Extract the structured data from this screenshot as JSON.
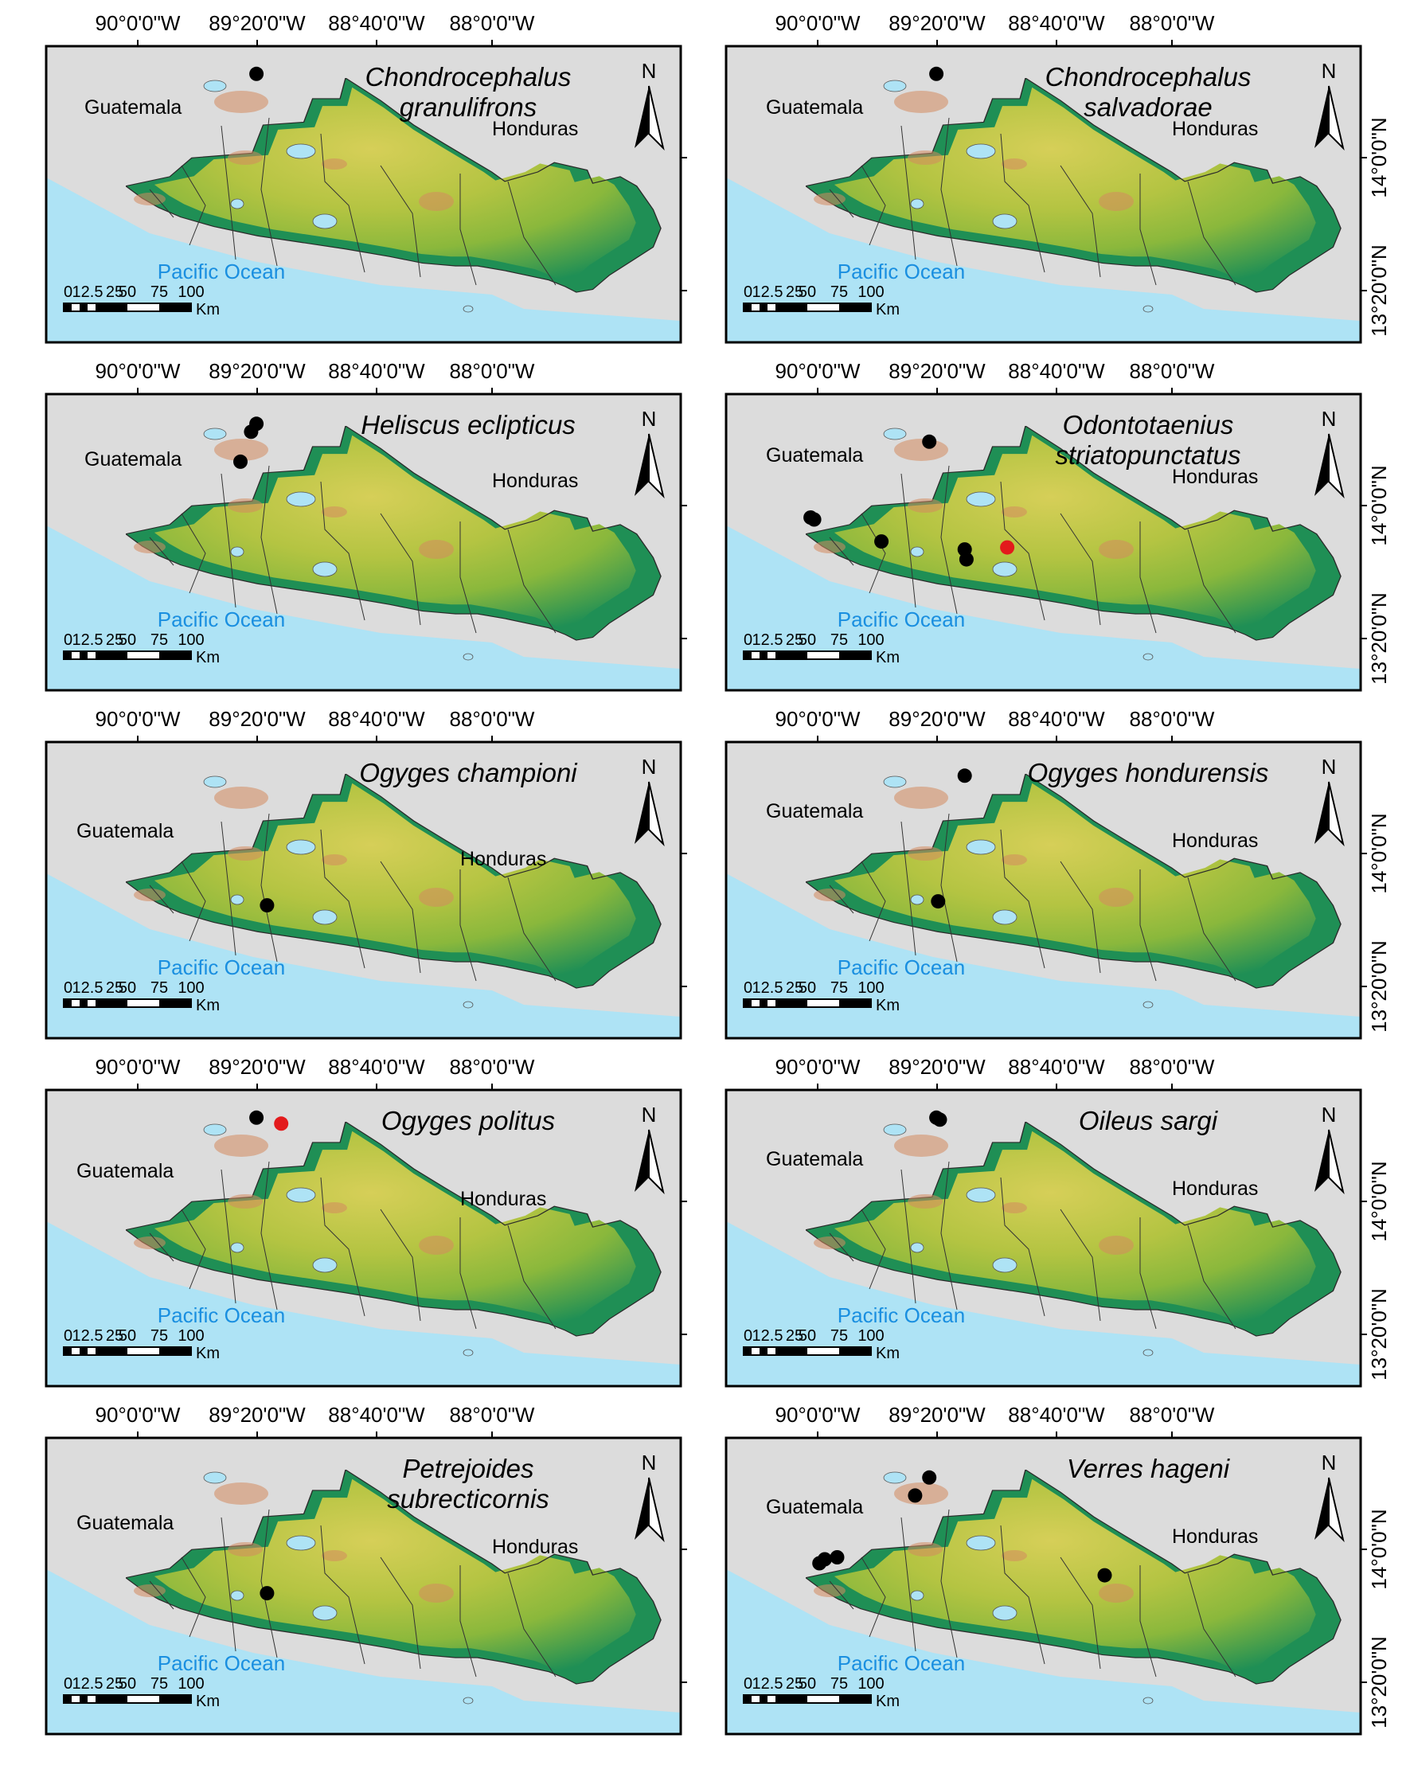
{
  "figure": {
    "lon_labels": [
      "90°0'0\"W",
      "89°20'0\"W",
      "88°40'0\"W",
      "88°0'0\"W"
    ],
    "lat_labels": [
      "14°0'0\"N",
      "13°20'0\"N"
    ],
    "place_labels": {
      "guatemala": "Guatemala",
      "honduras": "Honduras",
      "ocean": "Pacific Ocean"
    },
    "north_arrow_label": "N",
    "scale_bar": {
      "ticks": [
        "0",
        "12.5",
        "25",
        "50",
        "75",
        "100"
      ],
      "unit": "Km"
    },
    "colors": {
      "ocean": "#aee3f5",
      "neighbor_land": "#dcdcdc",
      "lowland": "#1f8f55",
      "midland": "#8ab83c",
      "upland": "#d6cf58",
      "highland": "#d48a5f",
      "record_point": "#000000",
      "new_record_point": "#e31a1c"
    }
  },
  "panels": [
    {
      "id": "p1",
      "title": [
        "Chondrocephalus",
        "granulifrons"
      ],
      "points": [
        {
          "lon": -89.33,
          "lat": 14.42,
          "new": false
        }
      ]
    },
    {
      "id": "p2",
      "title": [
        "Chondrocephalus",
        "salvadorae"
      ],
      "points": [
        {
          "lon": -89.33,
          "lat": 14.42,
          "new": false
        }
      ]
    },
    {
      "id": "p3",
      "title": [
        "Heliscus eclipticus"
      ],
      "points": [
        {
          "lon": -89.33,
          "lat": 14.41,
          "new": false
        },
        {
          "lon": -89.36,
          "lat": 14.37,
          "new": false
        },
        {
          "lon": -89.42,
          "lat": 14.22,
          "new": false
        }
      ]
    },
    {
      "id": "p4",
      "title": [
        "Odontotaenius",
        "striatopunctatus"
      ],
      "points": [
        {
          "lon": -89.37,
          "lat": 14.32,
          "new": false
        },
        {
          "lon": -90.04,
          "lat": 13.94,
          "new": false
        },
        {
          "lon": -90.02,
          "lat": 13.93,
          "new": false
        },
        {
          "lon": -89.64,
          "lat": 13.82,
          "new": false
        },
        {
          "lon": -89.17,
          "lat": 13.78,
          "new": false
        },
        {
          "lon": -89.16,
          "lat": 13.73,
          "new": false
        },
        {
          "lon": -88.93,
          "lat": 13.79,
          "new": true
        }
      ]
    },
    {
      "id": "p5",
      "title": [
        "Ogyges championi"
      ],
      "points": [
        {
          "lon": -89.27,
          "lat": 13.74,
          "new": false
        }
      ]
    },
    {
      "id": "p6",
      "title": [
        "Ogyges hondurensis"
      ],
      "points": [
        {
          "lon": -89.17,
          "lat": 14.39,
          "new": false
        },
        {
          "lon": -89.32,
          "lat": 13.76,
          "new": false
        }
      ]
    },
    {
      "id": "p7",
      "title": [
        "Ogyges politus"
      ],
      "points": [
        {
          "lon": -89.33,
          "lat": 14.42,
          "new": false
        },
        {
          "lon": -89.19,
          "lat": 14.39,
          "new": true
        }
      ]
    },
    {
      "id": "p8",
      "title": [
        "Oileus sargi"
      ],
      "points": [
        {
          "lon": -89.33,
          "lat": 14.42,
          "new": false
        },
        {
          "lon": -89.31,
          "lat": 14.41,
          "new": false
        }
      ]
    },
    {
      "id": "p9",
      "title": [
        "Petrejoides",
        "subrecticornis"
      ],
      "points": [
        {
          "lon": -89.27,
          "lat": 13.78,
          "new": false
        }
      ]
    },
    {
      "id": "p10",
      "title": [
        "Verres hageni"
      ],
      "points": [
        {
          "lon": -89.37,
          "lat": 14.36,
          "new": false
        },
        {
          "lon": -89.45,
          "lat": 14.27,
          "new": false
        },
        {
          "lon": -89.99,
          "lat": 13.93,
          "new": false
        },
        {
          "lon": -89.96,
          "lat": 13.95,
          "new": false
        },
        {
          "lon": -89.89,
          "lat": 13.96,
          "new": false
        },
        {
          "lon": -88.38,
          "lat": 13.87,
          "new": false
        }
      ]
    }
  ]
}
